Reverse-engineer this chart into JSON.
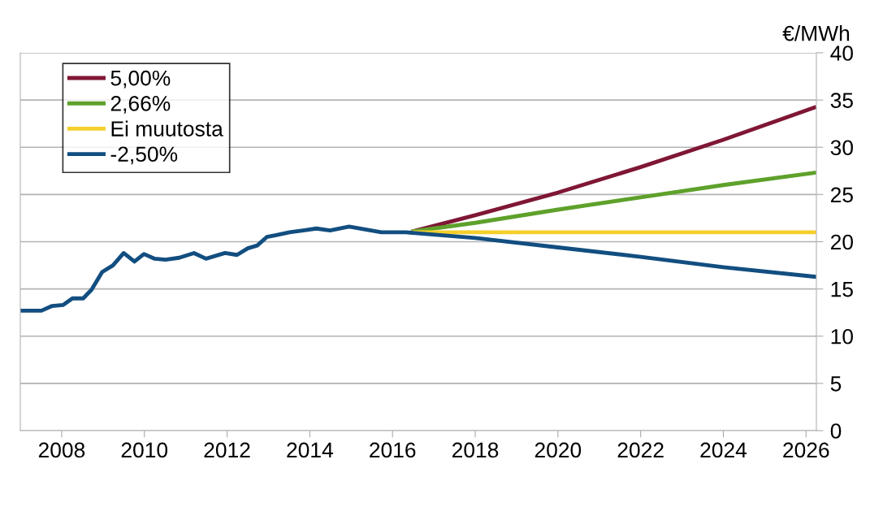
{
  "chart_data": {
    "type": "line",
    "ylabel": "€/MWh",
    "xlim": [
      2007.0,
      2026.25
    ],
    "ylim": [
      0,
      40
    ],
    "xticks": [
      2008,
      2010,
      2012,
      2014,
      2016,
      2018,
      2020,
      2022,
      2024,
      2026
    ],
    "yticks": [
      0,
      5,
      10,
      15,
      20,
      25,
      30,
      35,
      40
    ],
    "grid": "y",
    "legend": "top left",
    "marker": "none",
    "line_style": "solid",
    "series": [
      {
        "name": "5,00%",
        "color": "#7f1734",
        "x": [
          2016.5,
          2018,
          2020,
          2022,
          2024,
          2026.2
        ],
        "values": [
          21.1,
          22.8,
          25.2,
          27.9,
          30.8,
          34.2
        ]
      },
      {
        "name": "2,66%",
        "color": "#5ea12b",
        "x": [
          2016.5,
          2018,
          2020,
          2022,
          2024,
          2026.2
        ],
        "values": [
          21.1,
          22.0,
          23.4,
          24.7,
          26.0,
          27.3
        ]
      },
      {
        "name": "Ei muutosta",
        "color": "#f5cf2a",
        "x": [
          2016.5,
          2026.2
        ],
        "values": [
          21.0,
          21.0
        ]
      },
      {
        "name": "-2,50%",
        "color": "#124e80",
        "x": [
          2007.02,
          2007.51,
          2007.77,
          2008.03,
          2008.26,
          2008.52,
          2008.72,
          2008.98,
          2009.24,
          2009.5,
          2009.76,
          2009.99,
          2010.25,
          2010.51,
          2010.84,
          2011.2,
          2011.49,
          2011.95,
          2012.24,
          2012.5,
          2012.73,
          2012.96,
          2013.19,
          2013.51,
          2013.84,
          2014.16,
          2014.49,
          2014.95,
          2015.34,
          2015.73,
          2016.32,
          2018,
          2020,
          2022,
          2024,
          2026.2
        ],
        "values": [
          12.7,
          12.7,
          13.2,
          13.3,
          14.0,
          14.0,
          14.9,
          16.8,
          17.5,
          18.8,
          17.9,
          18.7,
          18.2,
          18.1,
          18.3,
          18.8,
          18.2,
          18.8,
          18.6,
          19.3,
          19.6,
          20.5,
          20.7,
          21.0,
          21.2,
          21.4,
          21.2,
          21.6,
          21.3,
          21.0,
          21.0,
          20.4,
          19.4,
          18.4,
          17.3,
          16.3
        ]
      }
    ]
  }
}
